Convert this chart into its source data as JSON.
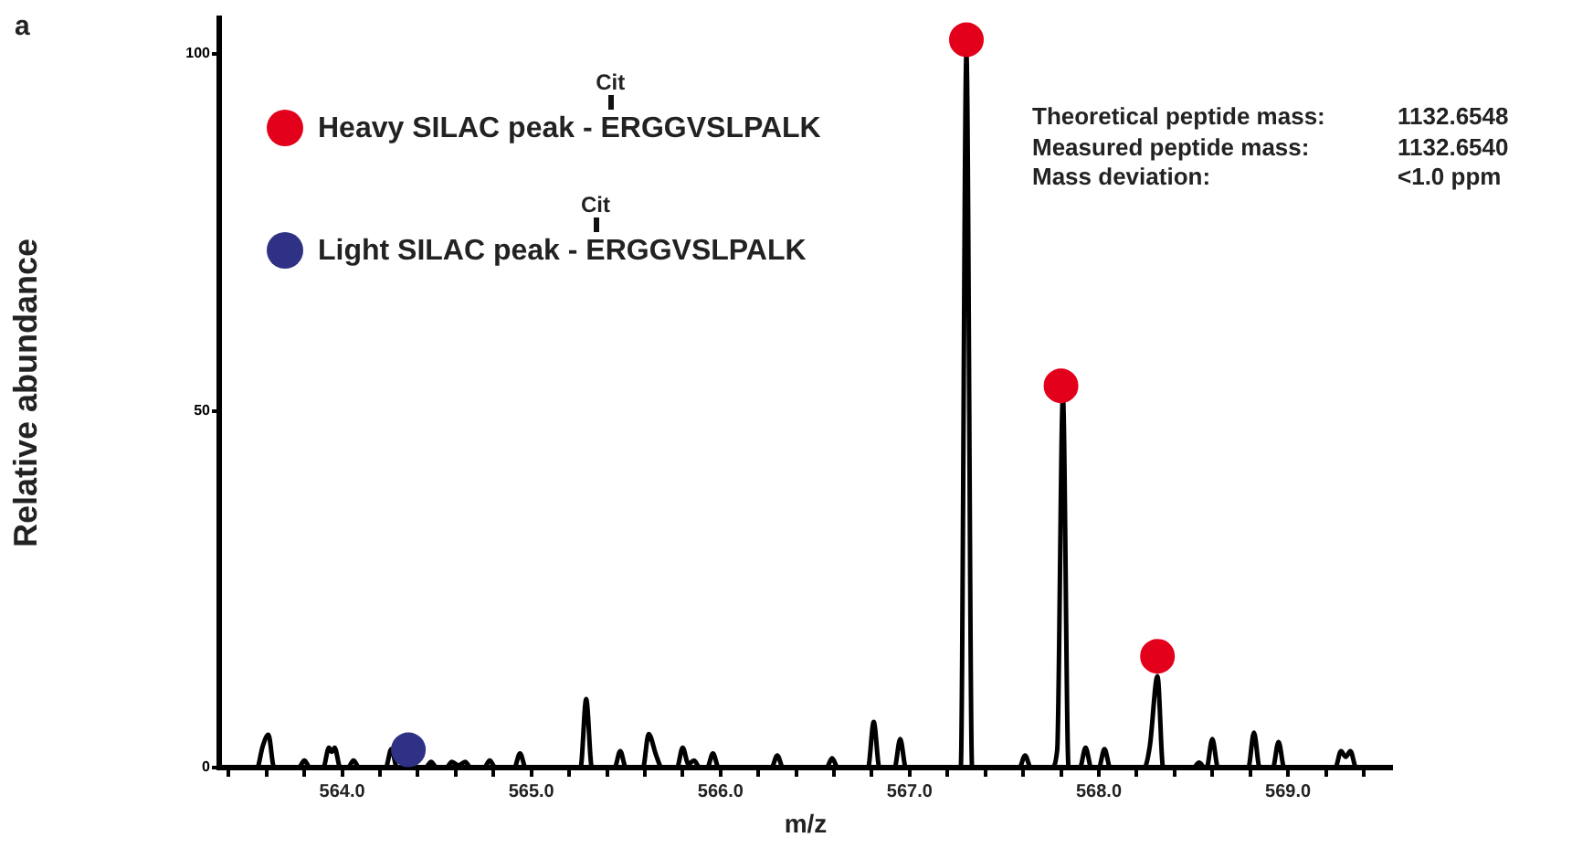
{
  "chart_data": {
    "type": "line",
    "xlabel": "m/z",
    "ylabel": "Relative abundance",
    "xlim": [
      563.35,
      569.55
    ],
    "ylim": [
      0,
      105
    ],
    "xticks": [
      {
        "value": 563.4,
        "label": null
      },
      {
        "value": 563.6,
        "label": null
      },
      {
        "value": 563.8,
        "label": null
      },
      {
        "value": 564,
        "label": "564.0"
      },
      {
        "value": 564.2,
        "label": null
      },
      {
        "value": 564.4,
        "label": null
      },
      {
        "value": 564.6,
        "label": null
      },
      {
        "value": 564.8,
        "label": null
      },
      {
        "value": 565,
        "label": "565.0"
      },
      {
        "value": 565.2,
        "label": null
      },
      {
        "value": 565.4,
        "label": null
      },
      {
        "value": 565.6,
        "label": null
      },
      {
        "value": 565.8,
        "label": null
      },
      {
        "value": 566,
        "label": "566.0"
      },
      {
        "value": 566.2,
        "label": null
      },
      {
        "value": 566.4,
        "label": null
      },
      {
        "value": 566.6,
        "label": null
      },
      {
        "value": 566.8,
        "label": null
      },
      {
        "value": 567,
        "label": "567.0"
      },
      {
        "value": 567.2,
        "label": null
      },
      {
        "value": 567.4,
        "label": null
      },
      {
        "value": 567.6,
        "label": null
      },
      {
        "value": 567.8,
        "label": null
      },
      {
        "value": 568,
        "label": "568.0"
      },
      {
        "value": 568.2,
        "label": null
      },
      {
        "value": 568.4,
        "label": null
      },
      {
        "value": 568.6,
        "label": null
      },
      {
        "value": 568.8,
        "label": null
      },
      {
        "value": 569,
        "label": "569.0"
      },
      {
        "value": 569.2,
        "label": null
      },
      {
        "value": 569.4,
        "label": null
      }
    ],
    "yticks": [
      0,
      50,
      100
    ],
    "grid": false,
    "legend": "top left",
    "annotations": [
      "a",
      "Cit",
      "Cit",
      "Theoretical peptide mass:",
      "1132.6548",
      "Measured peptide mass:",
      "1132.6540",
      "Mass deviation:",
      "<1.0 ppm"
    ],
    "series": [
      {
        "color": "#000000",
        "x": [
          563.35,
          563.55,
          563.58,
          563.61,
          563.64,
          563.77,
          563.8,
          563.83,
          563.9,
          563.93,
          563.945,
          563.96,
          563.99,
          564.03,
          564.06,
          564.09,
          564.23,
          564.26,
          564.29,
          564.44,
          564.47,
          564.5,
          564.55,
          564.58,
          564.615,
          564.65,
          564.68,
          564.75,
          564.78,
          564.81,
          564.91,
          564.94,
          564.97,
          565.26,
          565.29,
          565.32,
          565.44,
          565.47,
          565.5,
          565.59,
          565.62,
          565.66,
          565.69,
          565.77,
          565.8,
          565.83,
          565.86,
          565.89,
          565.93,
          565.96,
          565.99,
          566.27,
          566.3,
          566.33,
          566.56,
          566.59,
          566.62,
          566.78,
          566.81,
          566.84,
          566.92,
          566.95,
          566.98,
          567.27,
          567.3,
          567.33,
          567.58,
          567.61,
          567.64,
          567.75,
          567.78,
          567.81,
          567.84,
          567.9,
          567.93,
          567.96,
          568.0,
          568.03,
          568.06,
          568.24,
          568.27,
          568.31,
          568.34,
          568.5,
          568.53,
          568.56,
          568.57,
          568.6,
          568.63,
          568.79,
          568.82,
          568.85,
          568.92,
          568.95,
          568.98,
          569.25,
          569.28,
          569.305,
          569.33,
          569.36,
          569.55
        ],
        "values": [
          0,
          0,
          3,
          4.6,
          0,
          0,
          1,
          0,
          0,
          2.8,
          2.2,
          2.8,
          0,
          0,
          1,
          0,
          0,
          2.6,
          0,
          0,
          0.8,
          0,
          0,
          0.8,
          0.3,
          0.8,
          0,
          0,
          1,
          0,
          0,
          2,
          0,
          0,
          9.6,
          0,
          0,
          2.3,
          0,
          0,
          4.7,
          1.7,
          0,
          0,
          2.8,
          0.5,
          1,
          0,
          0,
          2,
          0,
          0,
          1.7,
          0,
          0,
          1.3,
          0,
          0,
          6.4,
          0,
          0,
          4,
          0,
          0,
          100,
          0,
          0,
          1.7,
          0,
          0,
          2.5,
          52,
          0,
          0,
          2.8,
          0,
          0,
          2.6,
          0,
          0,
          3.1,
          12.8,
          0,
          0,
          0.7,
          0,
          0,
          4,
          0,
          0,
          4.9,
          0,
          0,
          3.6,
          0,
          0,
          2.3,
          1.5,
          2.3,
          0,
          0
        ]
      },
      {
        "type": "scatter",
        "name": "Heavy SILAC peak - ERGGVSLPALK",
        "color": "#e3001b",
        "marker": "circle",
        "x": [
          567.3,
          567.8,
          568.31
        ],
        "values": [
          102,
          53.5,
          15.6
        ]
      },
      {
        "type": "scatter",
        "name": "Light SILAC peak - ERGGVSLPALK",
        "color": "#2e3184",
        "marker": "circle",
        "x": [
          564.35
        ],
        "values": [
          2.5
        ]
      }
    ]
  }
}
